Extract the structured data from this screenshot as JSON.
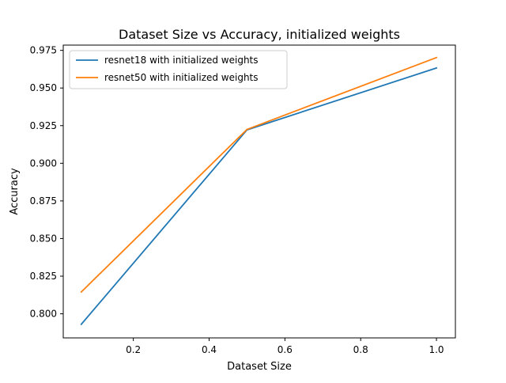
{
  "chart_data": {
    "type": "line",
    "title": "Dataset Size vs Accuracy, initialized weights",
    "xlabel": "Dataset Size",
    "ylabel": "Accuracy",
    "xlim": [
      0.015,
      1.05
    ],
    "ylim": [
      0.784,
      0.9785
    ],
    "xticks": [
      0.2,
      0.4,
      0.6,
      0.8,
      1.0
    ],
    "xtick_labels": [
      "0.2",
      "0.4",
      "0.6",
      "0.8",
      "1.0"
    ],
    "yticks": [
      0.8,
      0.825,
      0.85,
      0.875,
      0.9,
      0.925,
      0.95,
      0.975
    ],
    "ytick_labels": [
      "0.800",
      "0.825",
      "0.850",
      "0.875",
      "0.900",
      "0.925",
      "0.950",
      "0.975"
    ],
    "grid": false,
    "legend_position": "top-left",
    "series": [
      {
        "name": "resnet18 with initialized weights",
        "color": "#1f77b4",
        "x": [
          0.0625,
          0.5,
          1.0
        ],
        "y": [
          0.793,
          0.9222,
          0.9633
        ]
      },
      {
        "name": "resnet50 with initialized weights",
        "color": "#ff7f0e",
        "x": [
          0.0625,
          0.5,
          1.0
        ],
        "y": [
          0.8145,
          0.9225,
          0.9702
        ]
      }
    ]
  }
}
